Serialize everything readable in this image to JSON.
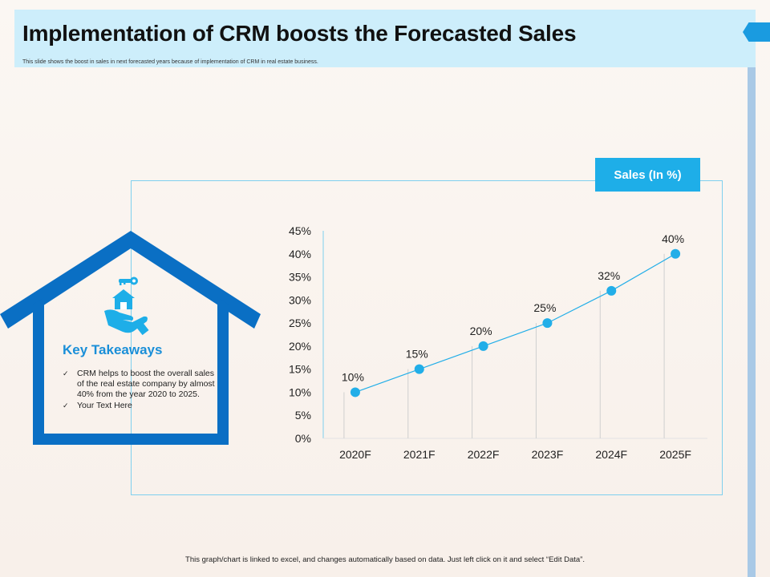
{
  "header": {
    "title": "Implementation of CRM boosts the Forecasted Sales",
    "subtitle": "This slide shows the boost in sales in next forecasted years because of implementation of CRM in real estate business."
  },
  "takeaways": {
    "title": "Key Takeaways",
    "items": [
      "CRM helps to boost the overall sales of the real estate company by almost 40% from the year 2020 to 2025.",
      "Your Text Here"
    ],
    "check": "✓"
  },
  "footer": {
    "note": "This graph/chart is linked to excel, and changes automatically based on data. Just left click on it and select “Edit Data”."
  },
  "colors": {
    "accent": "#1eaee8",
    "house": "#0a6fc4",
    "line": "#22aee8",
    "header_bg": "#cdeefb"
  },
  "chart_data": {
    "type": "line",
    "title": "Sales (In %)",
    "categories": [
      "2020F",
      "2021F",
      "2022F",
      "2023F",
      "2024F",
      "2025F"
    ],
    "series": [
      {
        "name": "Sales (In %)",
        "values": [
          10,
          15,
          20,
          25,
          32,
          40
        ]
      }
    ],
    "data_labels": [
      "10%",
      "15%",
      "20%",
      "25%",
      "32%",
      "40%"
    ],
    "ylim": [
      0,
      45
    ],
    "yticks": [
      0,
      5,
      10,
      15,
      20,
      25,
      30,
      35,
      40,
      45
    ],
    "ytick_labels": [
      "0%",
      "5%",
      "10%",
      "15%",
      "20%",
      "25%",
      "30%",
      "35%",
      "40%",
      "45%"
    ],
    "xlabel": "",
    "ylabel": "",
    "grid": false,
    "drop_lines": true
  }
}
